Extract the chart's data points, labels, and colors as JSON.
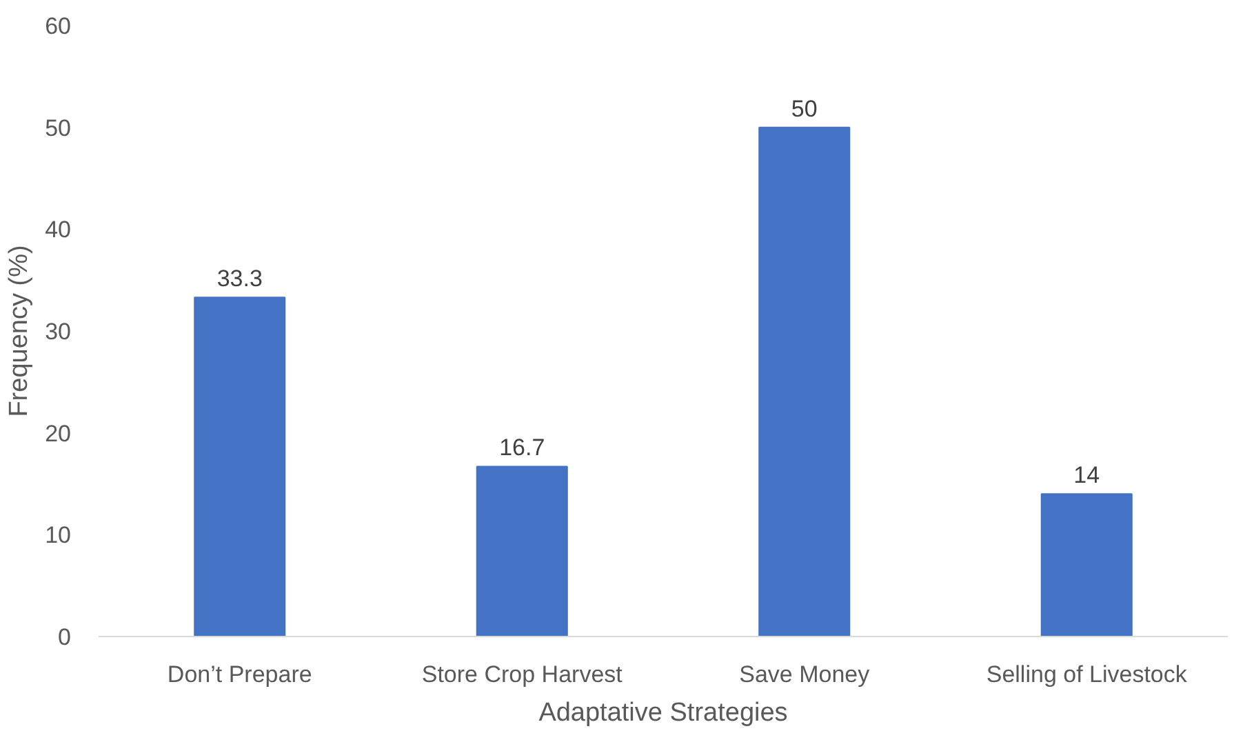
{
  "chart_data": {
    "type": "bar",
    "xlabel": "Adaptative Strategies",
    "ylabel": "Frequency (%)",
    "categories": [
      "Don’t Prepare",
      "Store Crop Harvest",
      "Save Money",
      "Selling of Livestock"
    ],
    "values": [
      33.3,
      16.7,
      50,
      14
    ],
    "color": "#4472c4",
    "ylim": [
      0,
      60
    ],
    "yticks": [
      0,
      10,
      20,
      30,
      40,
      50,
      60
    ],
    "data_labels": true
  }
}
